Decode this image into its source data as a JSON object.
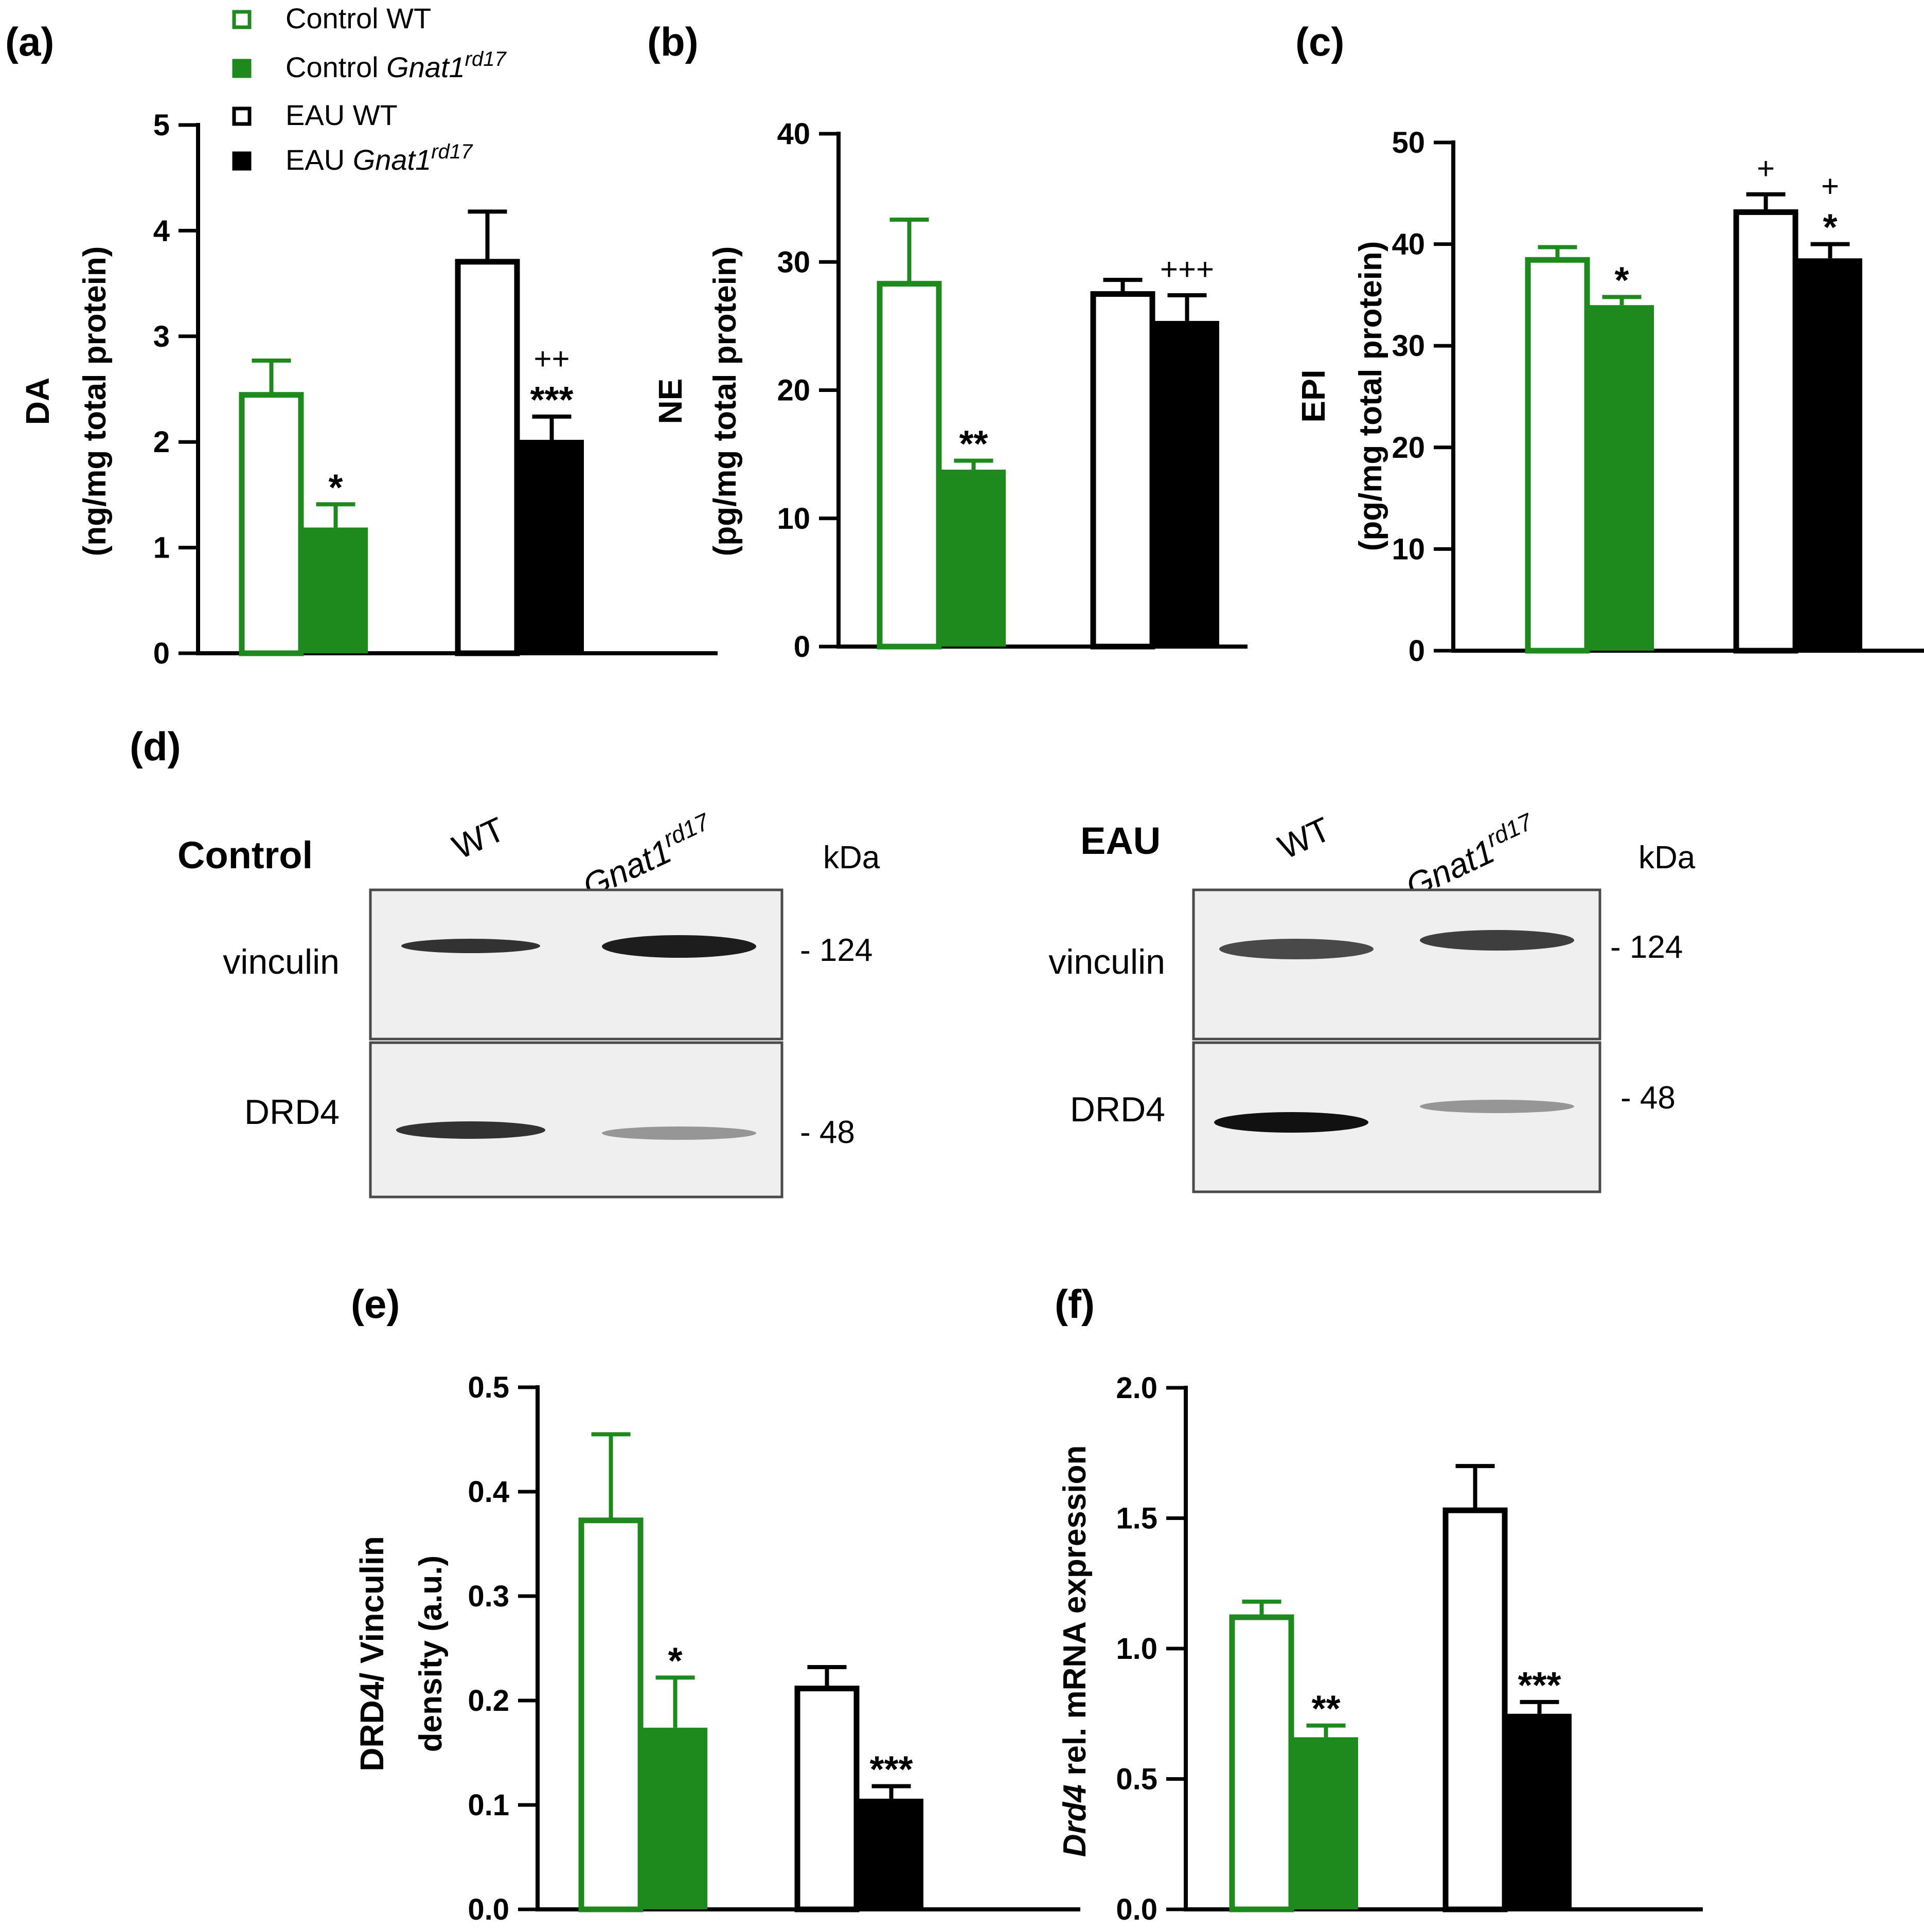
{
  "legend": {
    "items": [
      {
        "name": "Control WT",
        "plain": "Control WT",
        "italic": "",
        "sup": "",
        "color": "#1e8a1e",
        "filled": false
      },
      {
        "name": "Control Gnat1rd17",
        "plain": "Control ",
        "italic": "Gnat1",
        "sup": "rd17",
        "color": "#1e8a1e",
        "filled": true
      },
      {
        "name": "EAU WT",
        "plain": "EAU WT",
        "italic": "",
        "sup": "",
        "color": "#000000",
        "filled": false
      },
      {
        "name": "EAU Gnat1rd17",
        "plain": "EAU ",
        "italic": "Gnat1",
        "sup": "rd17",
        "color": "#000000",
        "filled": true
      }
    ]
  },
  "chart_data": [
    {
      "panel": "(a)",
      "type": "bar",
      "ylabel_main": "DA",
      "ylabel_sub": "(ng/mg total protein)",
      "ylabel_italic": "",
      "ylim": [
        0,
        5
      ],
      "yticks": [
        "0",
        "1",
        "2",
        "3",
        "4",
        "5"
      ],
      "values": [
        2.47,
        1.19,
        3.73,
        2.02
      ],
      "errors": [
        0.3,
        0.22,
        0.45,
        0.22
      ],
      "annotations": [
        "",
        "*",
        "",
        "++\n***"
      ]
    },
    {
      "panel": "(b)",
      "type": "bar",
      "ylabel_main": "NE",
      "ylabel_sub": "(pg/mg total protein)",
      "ylabel_italic": "",
      "ylim": [
        0,
        40
      ],
      "yticks": [
        "0",
        "10",
        "20",
        "30",
        "40"
      ],
      "values": [
        28.5,
        13.8,
        27.7,
        25.4
      ],
      "errors": [
        4.8,
        0.7,
        0.9,
        2.0
      ],
      "annotations": [
        "",
        "**",
        "",
        "+++"
      ]
    },
    {
      "panel": "(c)",
      "type": "bar",
      "ylabel_main": "EPI",
      "ylabel_sub": "(pg/mg total protein)",
      "ylabel_italic": "",
      "ylim": [
        0,
        50
      ],
      "yticks": [
        "0",
        "10",
        "20",
        "30",
        "40",
        "50"
      ],
      "values": [
        38.7,
        34.0,
        43.4,
        38.6
      ],
      "errors": [
        1.0,
        0.8,
        1.5,
        1.4
      ],
      "annotations": [
        "",
        "*",
        "+",
        "+\n*"
      ]
    },
    {
      "panel": "(e)",
      "type": "bar",
      "ylabel_main": "DRD4/ Vinculin",
      "ylabel_sub": "density (a.u.)",
      "ylabel_italic": "",
      "ylim": [
        0,
        0.5
      ],
      "yticks": [
        "0.0",
        "0.1",
        "0.2",
        "0.3",
        "0.4",
        "0.5"
      ],
      "values": [
        0.375,
        0.174,
        0.214,
        0.106
      ],
      "errors": [
        0.08,
        0.048,
        0.018,
        0.012
      ],
      "annotations": [
        "",
        "*",
        "",
        "***"
      ]
    },
    {
      "panel": "(f)",
      "type": "bar",
      "ylabel_main": " rel. mRNA expression",
      "ylabel_sub": "",
      "ylabel_italic": "Drd4",
      "ylim": [
        0,
        2.0
      ],
      "yticks": [
        "0.0",
        "0.5",
        "1.0",
        "1.5",
        "2.0"
      ],
      "values": [
        1.13,
        0.66,
        1.54,
        0.75
      ],
      "errors": [
        0.05,
        0.045,
        0.16,
        0.045
      ],
      "annotations": [
        "",
        "**",
        "",
        "***"
      ]
    }
  ],
  "western": {
    "panel": "(d)",
    "kda": "kDa",
    "gene": "Gnat1",
    "gene_sup": "rd17",
    "wt": "WT",
    "blots": [
      {
        "condition": "Control",
        "rows": [
          {
            "protein": "vinculin",
            "marker": "- 124"
          },
          {
            "protein": "DRD4",
            "marker": "- 48"
          }
        ]
      },
      {
        "condition": "EAU",
        "rows": [
          {
            "protein": "vinculin",
            "marker": "- 124"
          },
          {
            "protein": "DRD4",
            "marker": "- 48"
          }
        ]
      }
    ]
  }
}
